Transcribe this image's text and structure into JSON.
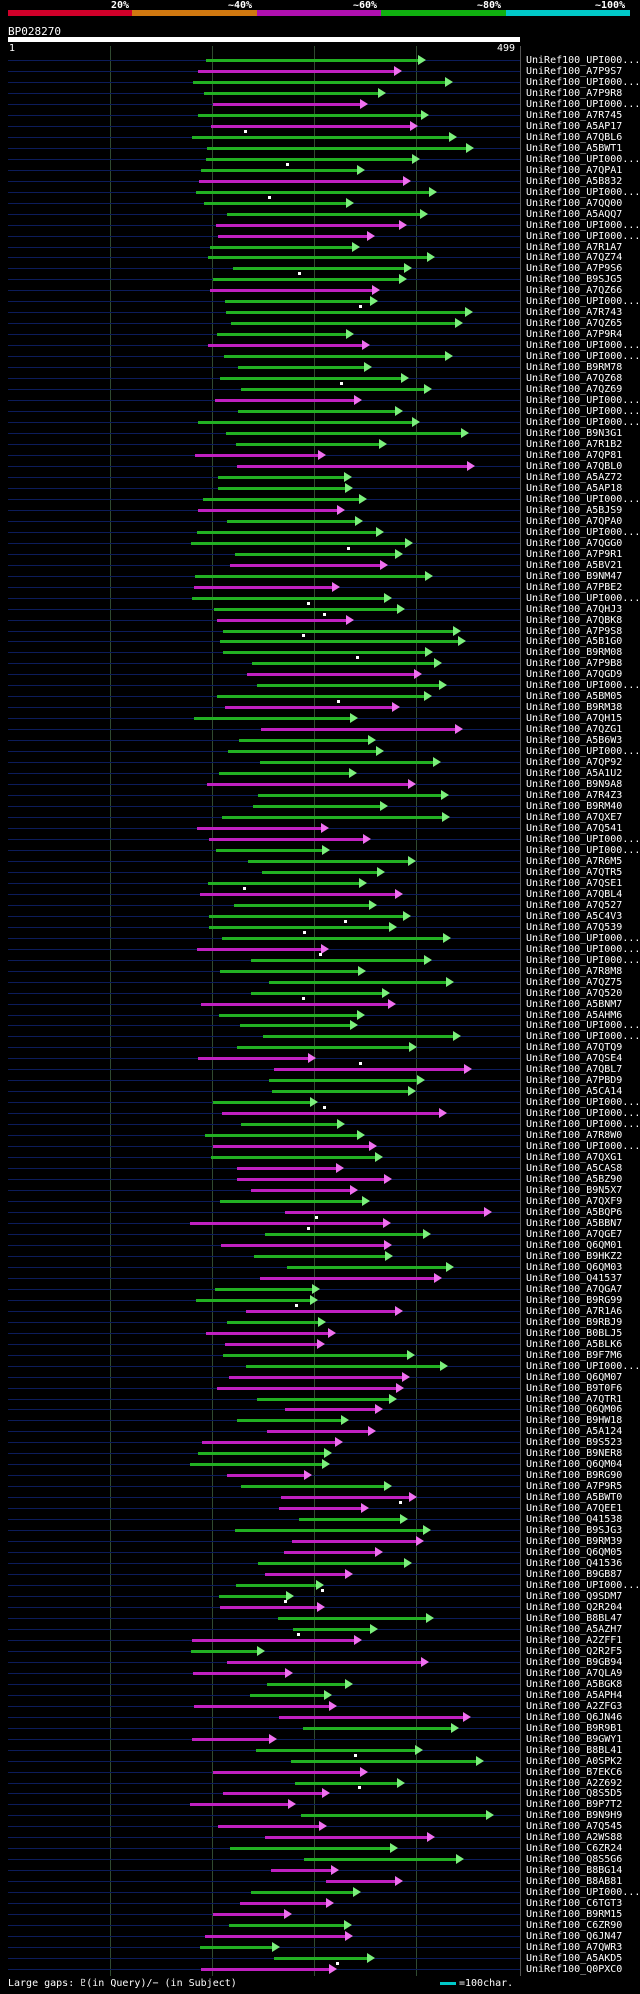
{
  "legend": {
    "labels": [
      "20%",
      "~40%",
      "~60%",
      "~80%",
      "~100%"
    ],
    "colors": [
      "#d0002a",
      "#d07810",
      "#b010b0",
      "#10b010",
      "#00c8c8"
    ]
  },
  "query": {
    "id": "BP028270",
    "start": "1",
    "end": "499"
  },
  "hit_labels": [
    "UniRef100_UPI000...",
    "UniRef100_A7P9S7",
    "UniRef100_UPI000...",
    "UniRef100_A7P9R8",
    "UniRef100_UPI000...",
    "UniRef100_A7R745",
    "UniRef100_A5AP17",
    "UniRef100_A7QBL6",
    "UniRef100_A5BWT1",
    "UniRef100_UPI000...",
    "UniRef100_A7QPA1",
    "UniRef100_A5B832",
    "UniRef100_UPI000...",
    "UniRef100_A7QQ00",
    "UniRef100_A5AQQ7",
    "UniRef100_UPI000...",
    "UniRef100_UPI000...",
    "UniRef100_A7R1A7",
    "UniRef100_A7QZ74",
    "UniRef100_A7P9S6",
    "UniRef100_B9SJG5",
    "UniRef100_A7QZ66",
    "UniRef100_UPI000...",
    "UniRef100_A7R743",
    "UniRef100_A7QZ65",
    "UniRef100_A7P9R4",
    "UniRef100_UPI000...",
    "UniRef100_UPI000...",
    "UniRef100_B9RM78",
    "UniRef100_A7QZ68",
    "UniRef100_A7QZ69",
    "UniRef100_UPI000...",
    "UniRef100_UPI000...",
    "UniRef100_UPI000...",
    "UniRef100_B9N3G1",
    "UniRef100_A7R1B2",
    "UniRef100_A7QP81",
    "UniRef100_A7QBL0",
    "UniRef100_A5AZ72",
    "UniRef100_A5AP18",
    "UniRef100_UPI000...",
    "UniRef100_A5BJS9",
    "UniRef100_A7QPA0",
    "UniRef100_UPI000...",
    "UniRef100_A7QGG0",
    "UniRef100_A7P9R1",
    "UniRef100_A5BV21",
    "UniRef100_B9NM47",
    "UniRef100_A7PBE2",
    "UniRef100_UPI000...",
    "UniRef100_A7QHJ3",
    "UniRef100_A7QBK8",
    "UniRef100_A7P9S8",
    "UniRef100_A5B1G0",
    "UniRef100_B9RM08",
    "UniRef100_A7P9B8",
    "UniRef100_A7QGD9",
    "UniRef100_UPI000...",
    "UniRef100_A5BM05",
    "UniRef100_B9RM38",
    "UniRef100_A7QH15",
    "UniRef100_A7QZG1",
    "UniRef100_A5B6W3",
    "UniRef100_UPI000...",
    "UniRef100_A7QP92",
    "UniRef100_A5A1U2",
    "UniRef100_B9N9A8",
    "UniRef100_A7R4Z3",
    "UniRef100_B9RM40",
    "UniRef100_A7QXE7",
    "UniRef100_A7Q541",
    "UniRef100_UPI000...",
    "UniRef100_UPI000...",
    "UniRef100_A7R6M5",
    "UniRef100_A7QTR5",
    "UniRef100_A7QSE1",
    "UniRef100_A7QBL4",
    "UniRef100_A7Q527",
    "UniRef100_A5C4V3",
    "UniRef100_A7Q539",
    "UniRef100_UPI000...",
    "UniRef100_UPI000...",
    "UniRef100_UPI000...",
    "UniRef100_A7R8M8",
    "UniRef100_A7QZ75",
    "UniRef100_A7Q520",
    "UniRef100_A5BNM7",
    "UniRef100_A5AHM6",
    "UniRef100_UPI000...",
    "UniRef100_UPI000...",
    "UniRef100_A7QTQ9",
    "UniRef100_A7QSE4",
    "UniRef100_A7QBL7",
    "UniRef100_A7PBD9",
    "UniRef100_A5CA14",
    "UniRef100_UPI000...",
    "UniRef100_UPI000...",
    "UniRef100_UPI000...",
    "UniRef100_A7R8W0",
    "UniRef100_UPI000...",
    "UniRef100_A7QXG1",
    "UniRef100_A5CAS8",
    "UniRef100_A5BZ90",
    "UniRef100_B9N5X7",
    "UniRef100_A7QXF9",
    "UniRef100_A5BQP6",
    "UniRef100_A5BBN7",
    "UniRef100_A7QGE7",
    "UniRef100_Q6QM01",
    "UniRef100_B9HKZ2",
    "UniRef100_Q6QM03",
    "UniRef100_Q41537",
    "UniRef100_A7QGA7",
    "UniRef100_B9RG99",
    "UniRef100_A7R1A6",
    "UniRef100_B9RBJ9",
    "UniRef100_B0BLJ5",
    "UniRef100_A5BLK6",
    "UniRef100_B9F7M6",
    "UniRef100_UPI000...",
    "UniRef100_Q6QM07",
    "UniRef100_B9T0F6",
    "UniRef100_A7QTR1",
    "UniRef100_Q6QM06",
    "UniRef100_B9HW18",
    "UniRef100_A5A124",
    "UniRef100_B9S523",
    "UniRef100_B9NER8",
    "UniRef100_Q6QM04",
    "UniRef100_B9RG90",
    "UniRef100_A7P9R5",
    "UniRef100_A5BWT0",
    "UniRef100_A7QEE1",
    "UniRef100_Q41538",
    "UniRef100_B9SJG3",
    "UniRef100_B9RM39",
    "UniRef100_Q6QM05",
    "UniRef100_Q41536",
    "UniRef100_B9GB87",
    "UniRef100_UPI000...",
    "UniRef100_Q9SDM7",
    "UniRef100_Q2R204",
    "UniRef100_B8BL47",
    "UniRef100_A5AZH7",
    "UniRef100_A2ZFF1",
    "UniRef100_Q2R2F5",
    "UniRef100_B9GB94",
    "UniRef100_A7QLA9",
    "UniRef100_A5BGK8",
    "UniRef100_A5APH4",
    "UniRef100_A2ZFG3",
    "UniRef100_Q6JN46",
    "UniRef100_B9R9B1",
    "UniRef100_B9GWY1",
    "UniRef100_B8BL41",
    "UniRef100_A0SPK2",
    "UniRef100_B7EKC6",
    "UniRef100_A2Z692",
    "UniRef100_Q8S5D5",
    "UniRef100_B9P7T2",
    "UniRef100_B9N9H9",
    "UniRef100_A7Q545",
    "UniRef100_A2WS88",
    "UniRef100_C6ZR24",
    "UniRef100_Q8S5G6",
    "UniRef100_B8BG14",
    "UniRef100_B8AB81",
    "UniRef100_UPI000...",
    "UniRef100_C6TGT3",
    "UniRef100_B9RM15",
    "UniRef100_C6ZR90",
    "UniRef100_Q6JN47",
    "UniRef100_A7QWR3",
    "UniRef100_A5AKD5",
    "UniRef100_Q0PXC0"
  ],
  "footer": {
    "large_gaps": "Large gaps: ♇(in Query)/− (in Subject)",
    "scale": "=100char."
  }
}
